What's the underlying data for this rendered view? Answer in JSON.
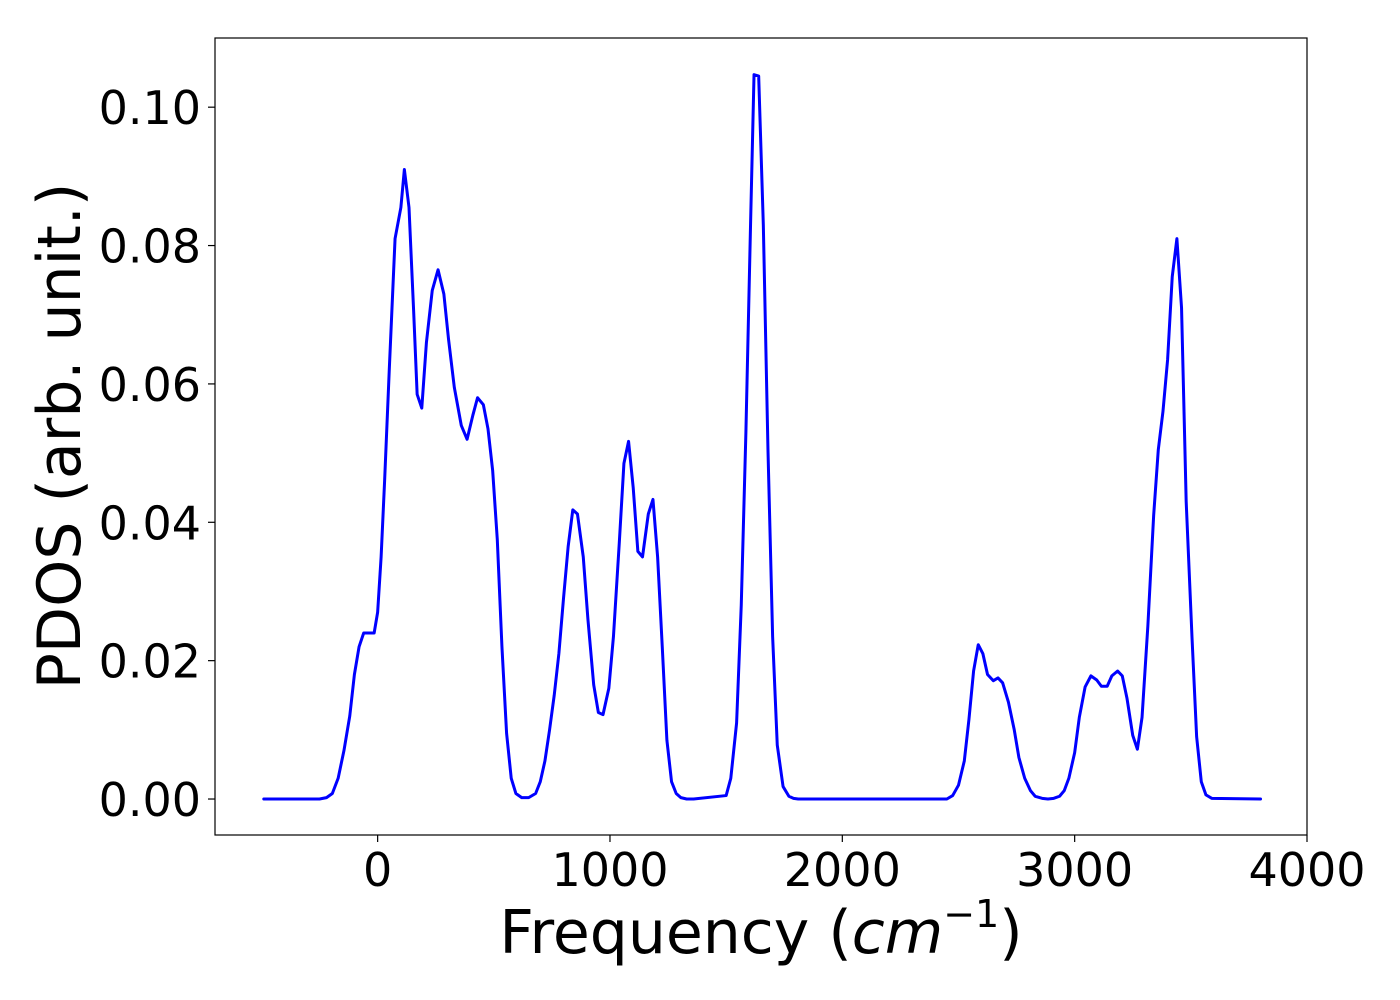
{
  "chart_data": {
    "type": "line",
    "title": "",
    "xlabel": "Frequency (",
    "xlabel_math": "cm",
    "xlabel_sup": "−1",
    "xlabel_close": ")",
    "ylabel": "PDOS (arb. unit.)",
    "xlim": [
      -700,
      4000
    ],
    "ylim": [
      -0.0052,
      0.11
    ],
    "xticks": [
      0,
      1000,
      2000,
      3000,
      4000
    ],
    "xtick_labels": [
      "0",
      "1000",
      "2000",
      "3000",
      "4000"
    ],
    "yticks": [
      0.0,
      0.02,
      0.04,
      0.06,
      0.08,
      0.1
    ],
    "ytick_labels": [
      "0.00",
      "0.02",
      "0.04",
      "0.06",
      "0.08",
      "0.10"
    ],
    "grid": false,
    "series": [
      {
        "color": "#0000ff",
        "x": [
          -490,
          -250,
          -220,
          -195,
          -170,
          -145,
          -120,
          -100,
          -80,
          -60,
          -40,
          -15,
          0,
          15,
          30,
          50,
          75,
          100,
          115,
          135,
          155,
          170,
          190,
          210,
          235,
          260,
          285,
          305,
          330,
          360,
          385,
          410,
          430,
          455,
          475,
          495,
          515,
          535,
          555,
          575,
          595,
          620,
          650,
          680,
          700,
          720,
          740,
          760,
          780,
          800,
          820,
          840,
          860,
          885,
          905,
          930,
          950,
          970,
          995,
          1015,
          1040,
          1060,
          1080,
          1100,
          1120,
          1140,
          1165,
          1185,
          1205,
          1225,
          1245,
          1265,
          1285,
          1305,
          1330,
          1360,
          1500,
          1520,
          1545,
          1565,
          1585,
          1605,
          1620,
          1640,
          1660,
          1680,
          1700,
          1720,
          1745,
          1770,
          1790,
          1810,
          1840,
          2450,
          2475,
          2500,
          2525,
          2545,
          2565,
          2585,
          2605,
          2625,
          2650,
          2670,
          2690,
          2715,
          2740,
          2760,
          2785,
          2810,
          2830,
          2860,
          2885,
          2910,
          2935,
          2955,
          2975,
          3000,
          3020,
          3045,
          3070,
          3095,
          3115,
          3140,
          3160,
          3185,
          3205,
          3225,
          3250,
          3270,
          3290,
          3315,
          3340,
          3360,
          3380,
          3400,
          3420,
          3440,
          3460,
          3480,
          3505,
          3525,
          3545,
          3565,
          3590,
          3800
        ],
        "y": [
          0.0,
          0.0,
          0.0002,
          0.0008,
          0.003,
          0.007,
          0.012,
          0.018,
          0.022,
          0.024,
          0.024,
          0.024,
          0.027,
          0.035,
          0.046,
          0.062,
          0.081,
          0.0855,
          0.091,
          0.0855,
          0.0705,
          0.0585,
          0.0565,
          0.066,
          0.0735,
          0.0765,
          0.073,
          0.0665,
          0.0595,
          0.054,
          0.052,
          0.0555,
          0.058,
          0.057,
          0.0535,
          0.0475,
          0.0375,
          0.022,
          0.0095,
          0.003,
          0.0008,
          0.0002,
          0.0002,
          0.0008,
          0.0025,
          0.0055,
          0.01,
          0.015,
          0.021,
          0.029,
          0.0365,
          0.0418,
          0.0412,
          0.035,
          0.026,
          0.0165,
          0.0125,
          0.0122,
          0.016,
          0.0235,
          0.037,
          0.0485,
          0.0517,
          0.045,
          0.0358,
          0.035,
          0.0412,
          0.0433,
          0.035,
          0.022,
          0.0085,
          0.0025,
          0.0008,
          0.0002,
          0.0,
          0.0,
          0.0005,
          0.003,
          0.011,
          0.028,
          0.053,
          0.083,
          0.1047,
          0.1045,
          0.083,
          0.0505,
          0.0235,
          0.0078,
          0.0018,
          0.0004,
          0.0001,
          0.0,
          0.0,
          0.0,
          0.0005,
          0.002,
          0.0055,
          0.0115,
          0.0185,
          0.0223,
          0.021,
          0.018,
          0.0171,
          0.0175,
          0.0168,
          0.014,
          0.01,
          0.006,
          0.003,
          0.0012,
          0.0004,
          0.0001,
          0.0,
          0.0001,
          0.0004,
          0.0012,
          0.003,
          0.0067,
          0.0118,
          0.0162,
          0.0178,
          0.0172,
          0.0163,
          0.0163,
          0.0178,
          0.0185,
          0.0178,
          0.0146,
          0.0092,
          0.0072,
          0.0118,
          0.025,
          0.041,
          0.0505,
          0.056,
          0.0635,
          0.0755,
          0.081,
          0.071,
          0.043,
          0.0234,
          0.009,
          0.0025,
          0.0006,
          0.0001,
          0.0
        ]
      }
    ]
  }
}
